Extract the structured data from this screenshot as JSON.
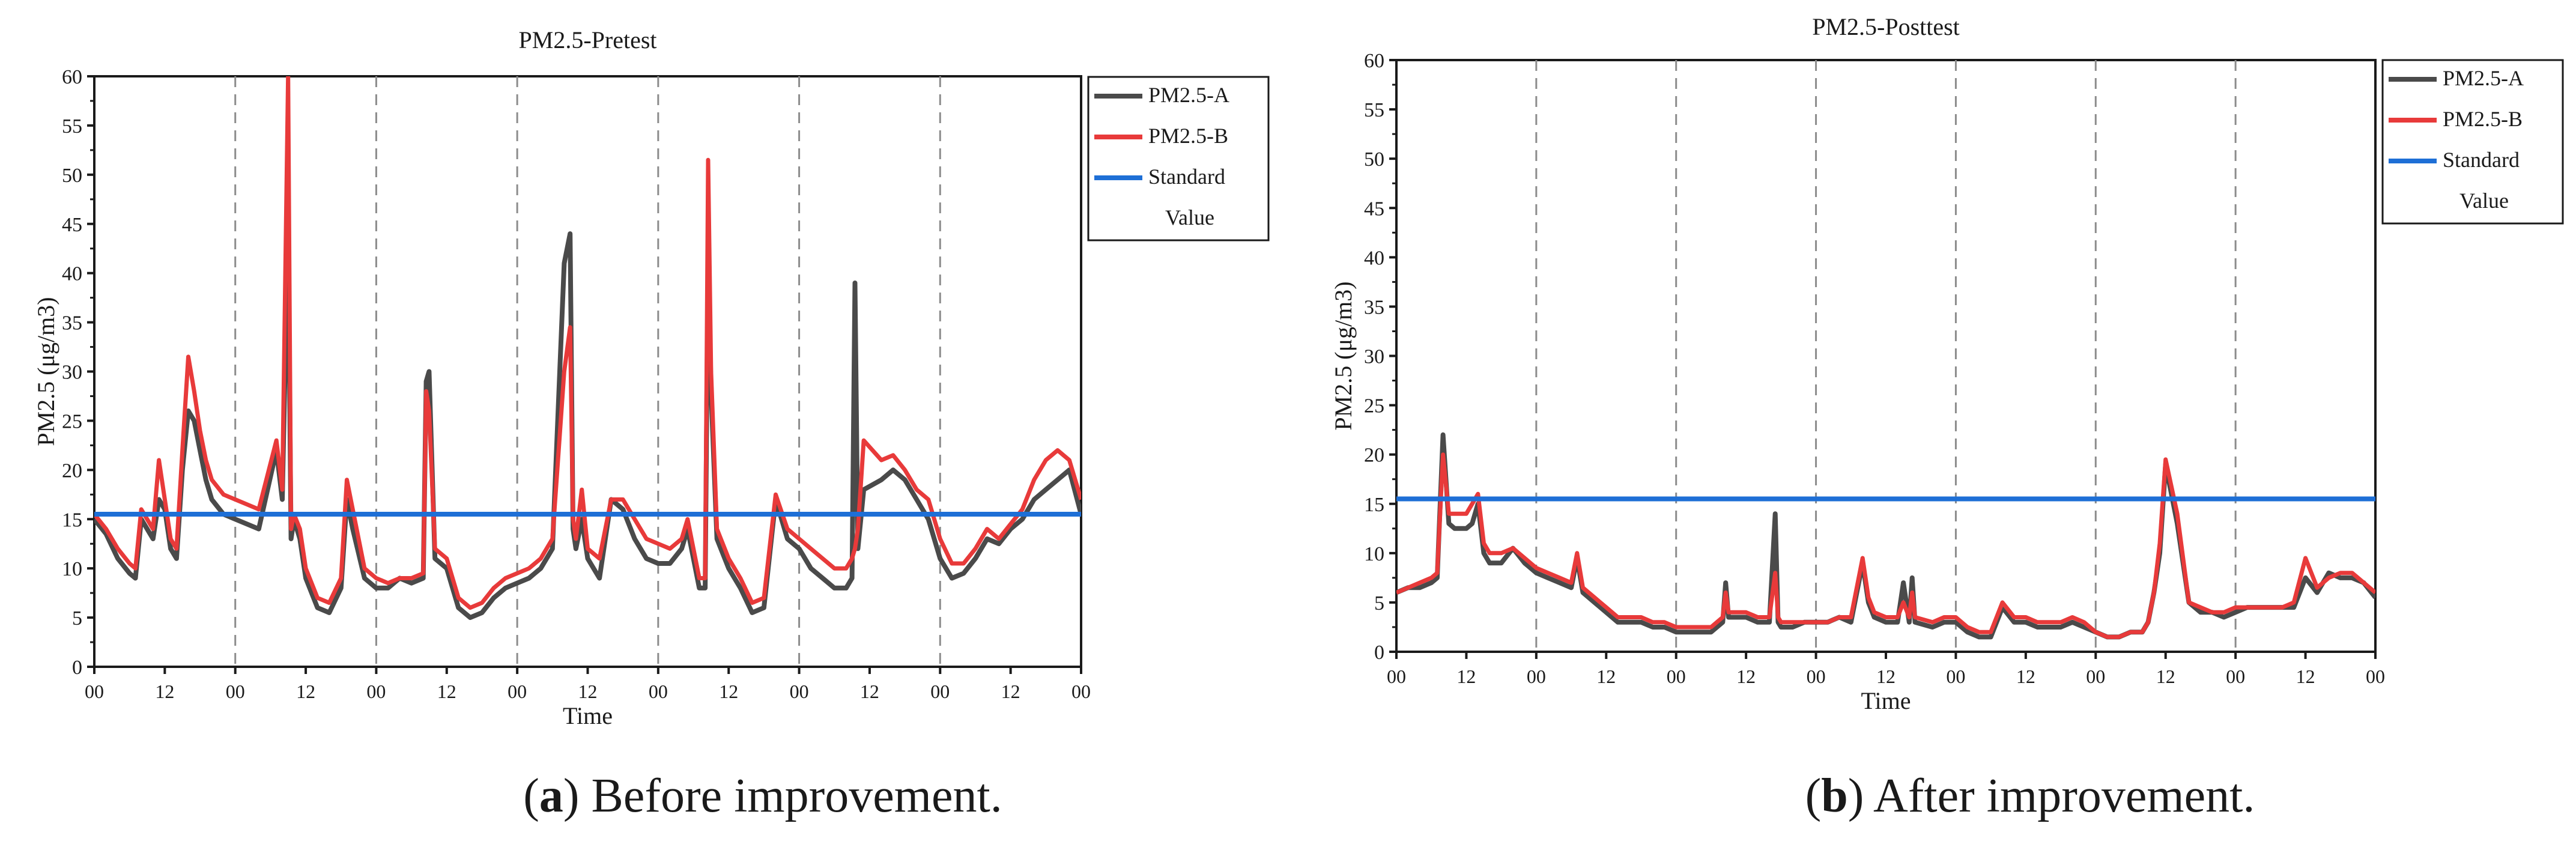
{
  "chart_data": [
    {
      "type": "line",
      "title": "PM2.5-Pretest",
      "xlabel": "Time",
      "ylabel": "PM2.5 (μg/m3)",
      "ylim": [
        0,
        60
      ],
      "yticks": [
        0,
        5,
        10,
        15,
        20,
        25,
        30,
        35,
        40,
        45,
        50,
        55,
        60
      ],
      "xlim": [
        0,
        168
      ],
      "xtick_labels": [
        "00",
        "12",
        "00",
        "12",
        "00",
        "12",
        "00",
        "12",
        "00",
        "12",
        "00",
        "12",
        "00",
        "12",
        "00"
      ],
      "day_dividers_hours": [
        24,
        48,
        72,
        96,
        120,
        144
      ],
      "legend": {
        "position": "top-right",
        "entries": [
          "PM2.5-A",
          "PM2.5-B",
          "Standard",
          "Value"
        ]
      },
      "standard_value": 15.5,
      "series": [
        {
          "name": "PM2.5-A",
          "color": "#4a4a4a",
          "x": [
            0,
            2,
            4,
            6,
            7,
            8,
            9,
            10,
            11,
            12,
            13,
            14,
            15,
            16,
            17,
            18,
            19,
            20,
            22,
            24,
            26,
            28,
            31,
            32,
            33,
            33.5,
            34,
            35,
            36,
            38,
            40,
            42,
            43,
            44,
            46,
            48,
            50,
            52,
            54,
            56,
            56.5,
            57,
            58,
            60,
            62,
            64,
            66,
            68,
            70,
            72,
            74,
            76,
            78,
            80,
            81,
            81.5,
            82,
            83,
            84,
            86,
            88,
            90,
            92,
            94,
            96,
            98,
            100,
            101,
            103,
            104,
            104.5,
            105,
            106,
            108,
            110,
            112,
            114,
            116,
            118,
            120,
            122,
            124,
            126,
            128,
            129,
            129.5,
            130,
            131,
            134,
            136,
            138,
            140,
            142,
            144,
            146,
            148,
            150,
            152,
            154,
            156,
            158,
            160,
            162,
            164,
            166,
            168
          ],
          "values": [
            15,
            13.5,
            11,
            9.5,
            9,
            15,
            14,
            13,
            17,
            16,
            12,
            11,
            20,
            26,
            25,
            22,
            19,
            17,
            15.5,
            15,
            14.5,
            14,
            22,
            17,
            45,
            13,
            15,
            13,
            9,
            6,
            5.5,
            8,
            17,
            14,
            9,
            8,
            8,
            9,
            8.5,
            9,
            29,
            30,
            11,
            10,
            6,
            5,
            5.5,
            7,
            8,
            8.5,
            9,
            10,
            12,
            41,
            44,
            14,
            12,
            15,
            11,
            9,
            17,
            16,
            13,
            11,
            10.5,
            10.5,
            12,
            14,
            8,
            8,
            42,
            28,
            13,
            10,
            8,
            5.5,
            6,
            17,
            13,
            12,
            10,
            9,
            8,
            8,
            9,
            39,
            12,
            18,
            19,
            20,
            19,
            17,
            15,
            11,
            9,
            9.5,
            11,
            13,
            12.5,
            14,
            15,
            17,
            18,
            19,
            20,
            15.5
          ]
        },
        {
          "name": "PM2.5-B",
          "color": "#e83a3a",
          "x": [
            0,
            2,
            4,
            6,
            7,
            8,
            9,
            10,
            11,
            12,
            13,
            14,
            15,
            16,
            17,
            18,
            19,
            20,
            22,
            24,
            26,
            28,
            31,
            32,
            33,
            33.5,
            34,
            35,
            36,
            38,
            40,
            42,
            43,
            44,
            46,
            48,
            50,
            52,
            54,
            56,
            56.5,
            57,
            58,
            60,
            62,
            64,
            66,
            68,
            70,
            72,
            74,
            76,
            78,
            80,
            81,
            81.5,
            82,
            83,
            84,
            86,
            88,
            90,
            92,
            94,
            96,
            98,
            100,
            101,
            103,
            104,
            104.5,
            105,
            106,
            108,
            110,
            112,
            114,
            116,
            118,
            120,
            122,
            124,
            126,
            128,
            129,
            129.5,
            130,
            131,
            134,
            136,
            138,
            140,
            142,
            144,
            146,
            148,
            150,
            152,
            154,
            156,
            158,
            160,
            162,
            164,
            166,
            168
          ],
          "values": [
            15.5,
            14,
            12,
            10.5,
            10,
            16,
            15,
            14,
            21,
            17,
            13,
            12,
            22,
            31.5,
            28,
            24,
            21,
            19,
            17.5,
            17,
            16.5,
            16,
            23,
            18,
            60,
            14,
            15.5,
            14,
            10,
            7,
            6.5,
            9,
            19,
            16,
            10,
            9,
            8.5,
            9,
            9,
            9.5,
            28,
            26,
            12,
            11,
            7,
            6,
            6.5,
            8,
            9,
            9.5,
            10,
            11,
            13,
            30,
            34.5,
            15,
            13,
            18,
            12,
            11,
            17,
            17,
            15,
            13,
            12.5,
            12,
            13,
            15,
            9,
            9,
            51.5,
            30,
            14,
            11,
            9,
            6.5,
            7,
            17.5,
            14,
            13,
            12,
            11,
            10,
            10,
            11,
            12,
            14,
            23,
            21,
            21.5,
            20,
            18,
            17,
            13,
            10.5,
            10.5,
            12,
            14,
            13,
            14.5,
            16,
            19,
            21,
            22,
            21,
            17
          ]
        }
      ]
    },
    {
      "type": "line",
      "title": "PM2.5-Posttest",
      "xlabel": "Time",
      "ylabel": "PM2.5 (μg/m3)",
      "ylim": [
        0,
        60
      ],
      "yticks": [
        0,
        5,
        10,
        15,
        20,
        25,
        30,
        35,
        40,
        45,
        50,
        55,
        60
      ],
      "xlim": [
        0,
        168
      ],
      "xtick_labels": [
        "00",
        "12",
        "00",
        "12",
        "00",
        "12",
        "00",
        "12",
        "00",
        "12",
        "00",
        "12",
        "00",
        "12",
        "00"
      ],
      "day_dividers_hours": [
        24,
        48,
        72,
        96,
        120,
        144
      ],
      "legend": {
        "position": "top-right",
        "entries": [
          "PM2.5-A",
          "PM2.5-B",
          "Standard",
          "Value"
        ]
      },
      "standard_value": 15.5,
      "series": [
        {
          "name": "PM2.5-A",
          "color": "#4a4a4a",
          "x": [
            0,
            2,
            4,
            6,
            7,
            8,
            9,
            10,
            12,
            13,
            14,
            15,
            16,
            18,
            20,
            22,
            24,
            26,
            28,
            30,
            31,
            32,
            34,
            36,
            38,
            40,
            42,
            44,
            46,
            48,
            50,
            52,
            54,
            56,
            56.5,
            57,
            58,
            60,
            62,
            64,
            65,
            65.5,
            66,
            68,
            70,
            72,
            74,
            76,
            78,
            80,
            81,
            82,
            84,
            86,
            87,
            88,
            88.5,
            89,
            92,
            94,
            96,
            98,
            100,
            102,
            104,
            106,
            108,
            110,
            112,
            114,
            116,
            118,
            120,
            122,
            124,
            126,
            128,
            129,
            130,
            131,
            132,
            134,
            136,
            138,
            140,
            142,
            144,
            146,
            148,
            150,
            152,
            154,
            156,
            158,
            160,
            162,
            164,
            166,
            168
          ],
          "values": [
            6,
            6.5,
            6.5,
            7,
            7.5,
            22,
            13,
            12.5,
            12.5,
            13,
            15,
            10,
            9,
            9,
            10.5,
            9,
            8,
            7.5,
            7,
            6.5,
            9.5,
            6,
            5,
            4,
            3,
            3,
            3,
            2.5,
            2.5,
            2,
            2,
            2,
            2,
            3,
            7,
            3.5,
            3.5,
            3.5,
            3,
            3,
            14,
            3,
            2.5,
            2.5,
            3,
            3,
            3,
            3.5,
            3,
            9,
            5,
            3.5,
            3,
            3,
            7,
            3,
            7.5,
            3,
            2.5,
            3,
            3,
            2,
            1.5,
            1.5,
            4.5,
            3,
            3,
            2.5,
            2.5,
            2.5,
            3,
            2.5,
            2,
            1.5,
            1.5,
            2,
            2,
            3,
            6,
            10,
            19,
            13,
            5,
            4,
            4,
            3.5,
            4,
            4.5,
            4.5,
            4.5,
            4.5,
            4.5,
            7.5,
            6,
            8,
            7.5,
            7.5,
            7,
            5.5
          ]
        },
        {
          "name": "PM2.5-B",
          "color": "#e83a3a",
          "x": [
            0,
            2,
            4,
            6,
            7,
            8,
            9,
            10,
            12,
            13,
            14,
            15,
            16,
            18,
            20,
            22,
            24,
            26,
            28,
            30,
            31,
            32,
            34,
            36,
            38,
            40,
            42,
            44,
            46,
            48,
            50,
            52,
            54,
            56,
            56.5,
            57,
            58,
            60,
            62,
            64,
            65,
            65.5,
            66,
            68,
            70,
            72,
            74,
            76,
            78,
            80,
            81,
            82,
            84,
            86,
            87,
            88,
            88.5,
            89,
            92,
            94,
            96,
            98,
            100,
            102,
            104,
            106,
            108,
            110,
            112,
            114,
            116,
            118,
            120,
            122,
            124,
            126,
            128,
            129,
            130,
            131,
            132,
            134,
            136,
            138,
            140,
            142,
            144,
            146,
            148,
            150,
            152,
            154,
            156,
            158,
            160,
            162,
            164,
            166,
            168
          ],
          "values": [
            6,
            6.5,
            7,
            7.5,
            8,
            20,
            14,
            14,
            14,
            15,
            16,
            11,
            10,
            10,
            10.5,
            9.5,
            8.5,
            8,
            7.5,
            7,
            10,
            6.5,
            5.5,
            4.5,
            3.5,
            3.5,
            3.5,
            3,
            3,
            2.5,
            2.5,
            2.5,
            2.5,
            3.5,
            6,
            4,
            4,
            4,
            3.5,
            3.5,
            8,
            3.5,
            3,
            3,
            3,
            3,
            3,
            3.5,
            3.5,
            9.5,
            5.5,
            4,
            3.5,
            3.5,
            5,
            3.5,
            6,
            3.5,
            3,
            3.5,
            3.5,
            2.5,
            2,
            2,
            5,
            3.5,
            3.5,
            3,
            3,
            3,
            3.5,
            3,
            2,
            1.5,
            1.5,
            2,
            2,
            3,
            6,
            11,
            19.5,
            14,
            5,
            4.5,
            4,
            4,
            4.5,
            4.5,
            4.5,
            4.5,
            4.5,
            5,
            9.5,
            6.5,
            7.5,
            8,
            8,
            7,
            6
          ]
        }
      ]
    }
  ],
  "captions": [
    {
      "label": "a",
      "text": " Before improvement."
    },
    {
      "label": "b",
      "text": " After improvement."
    }
  ],
  "colors": {
    "series_a": "#4a4a4a",
    "series_b": "#e83a3a",
    "standard": "#1e6fd6",
    "divider": "#8c8c8c"
  }
}
